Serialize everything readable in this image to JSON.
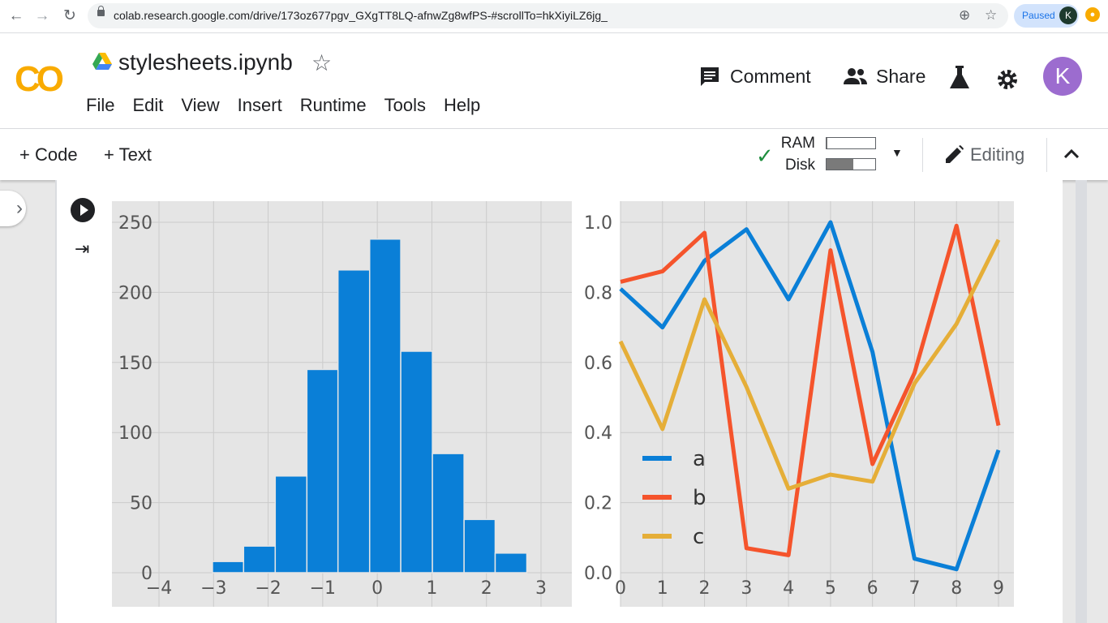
{
  "browser": {
    "url": "colab.research.google.com/drive/173oz677pgv_GXgTT8LQ-afnwZg8wfPS-#scrollTo=hkXiyiLZ6jg_",
    "paused_label": "Paused",
    "profile_initial": "K"
  },
  "header": {
    "logo": "CO",
    "notebook_title": "stylesheets.ipynb",
    "menu": [
      "File",
      "Edit",
      "View",
      "Insert",
      "Runtime",
      "Tools",
      "Help"
    ],
    "comment_label": "Comment",
    "share_label": "Share",
    "avatar_initial": "K"
  },
  "toolbar": {
    "add_code_label": "+ Code",
    "add_text_label": "+ Text",
    "ram_label": "RAM",
    "disk_label": "Disk",
    "ram_usage": 0.02,
    "disk_usage": 0.55,
    "editing_label": "Editing"
  },
  "colors": {
    "accent_orange": "#f9ab00",
    "avatar": "#9c6ccf",
    "check": "#1e8e3e"
  },
  "chart_data": [
    {
      "type": "bar",
      "xlim": [
        -4,
        3
      ],
      "ylim": [
        0,
        250
      ],
      "xticks": [
        "−4",
        "−3",
        "−2",
        "−1",
        "0",
        "1",
        "2",
        "3"
      ],
      "yticks": [
        "0",
        "50",
        "100",
        "150",
        "200",
        "250"
      ],
      "bin_edges": [
        -3.02,
        -2.45,
        -1.87,
        -1.29,
        -0.72,
        -0.14,
        0.43,
        1.01,
        1.59,
        2.16,
        2.74
      ],
      "values": [
        8,
        19,
        69,
        145,
        216,
        238,
        158,
        85,
        38,
        14
      ],
      "color": "#0a7fd7",
      "grid": true
    },
    {
      "type": "line",
      "xlim": [
        0,
        9
      ],
      "ylim": [
        0,
        1
      ],
      "xticks": [
        "0",
        "1",
        "2",
        "3",
        "4",
        "5",
        "6",
        "7",
        "8",
        "9"
      ],
      "yticks": [
        "0.0",
        "0.2",
        "0.4",
        "0.6",
        "0.8",
        "1.0"
      ],
      "x": [
        0,
        1,
        2,
        3,
        4,
        5,
        6,
        7,
        8,
        9
      ],
      "series": [
        {
          "name": "a",
          "color": "#0a7fd7",
          "values": [
            0.81,
            0.7,
            0.89,
            0.98,
            0.78,
            1.0,
            0.63,
            0.04,
            0.01,
            0.35
          ]
        },
        {
          "name": "b",
          "color": "#f5542c",
          "values": [
            0.83,
            0.86,
            0.97,
            0.07,
            0.05,
            0.92,
            0.31,
            0.57,
            0.99,
            0.42
          ]
        },
        {
          "name": "c",
          "color": "#e5ae38",
          "values": [
            0.66,
            0.41,
            0.78,
            0.53,
            0.24,
            0.28,
            0.26,
            0.54,
            0.71,
            0.95
          ]
        }
      ],
      "legend_position": "lower-left",
      "grid": true
    }
  ]
}
